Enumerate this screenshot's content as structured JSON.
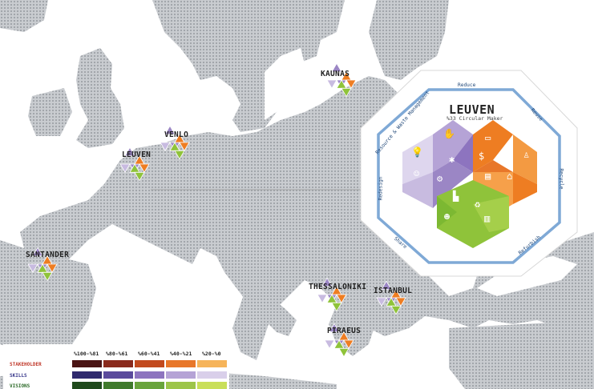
{
  "cities": [
    {
      "name": "KAUNAS"
    },
    {
      "name": "VENLO"
    },
    {
      "name": "LEUVEN"
    },
    {
      "name": "SANTANDER"
    },
    {
      "name": "THESSALONIKI"
    },
    {
      "name": "ISTANBUL"
    },
    {
      "name": "PIRAEUS"
    }
  ],
  "detail_panel": {
    "city": "LEUVEN",
    "subtitle": "%33 Circular Maker",
    "ring_labels": {
      "top": "Reduce",
      "top_right": "Reuse",
      "right": "Recycle",
      "bottom_right": "Refurbish",
      "bottom_left": "Share",
      "left": "Redesign",
      "top_left": "Resource & Waste Management"
    },
    "icons": [
      "lightbulb-icon",
      "hand-icon",
      "network-icon",
      "briefcase-icon",
      "money-icon",
      "person-icon",
      "head-icon",
      "gears-icon",
      "book-icon",
      "bank-icon",
      "factory-icon",
      "recycle-icon",
      "people-icon",
      "chart-icon"
    ]
  },
  "legend": {
    "headers": [
      "%100-%81",
      "%80-%61",
      "%60-%41",
      "%40-%21",
      "%20-%0"
    ],
    "rows": [
      {
        "label": "STAKEHOLDER",
        "color": "#c0392b",
        "swatches": [
          "#4a1414",
          "#8a2a1c",
          "#c24a1e",
          "#e8772a",
          "#f6b45a"
        ]
      },
      {
        "label": "SKILLS",
        "color": "#3a3a8c",
        "swatches": [
          "#2f2a6e",
          "#5a4a9c",
          "#8d74bf",
          "#b5a3d6",
          "#d9cfea"
        ]
      },
      {
        "label": "VISIONS",
        "color": "#2e6b2a",
        "swatches": [
          "#1f4a1c",
          "#3f7a2c",
          "#69a43c",
          "#9dc54a",
          "#c9df5a"
        ]
      }
    ]
  },
  "colors": {
    "orange": "#ee7d22",
    "purple": "#9b86c5",
    "light_purple": "#c8bbe0",
    "green": "#8fc33a",
    "land": "#c4c7cb",
    "ring": "#7fa9d6"
  }
}
